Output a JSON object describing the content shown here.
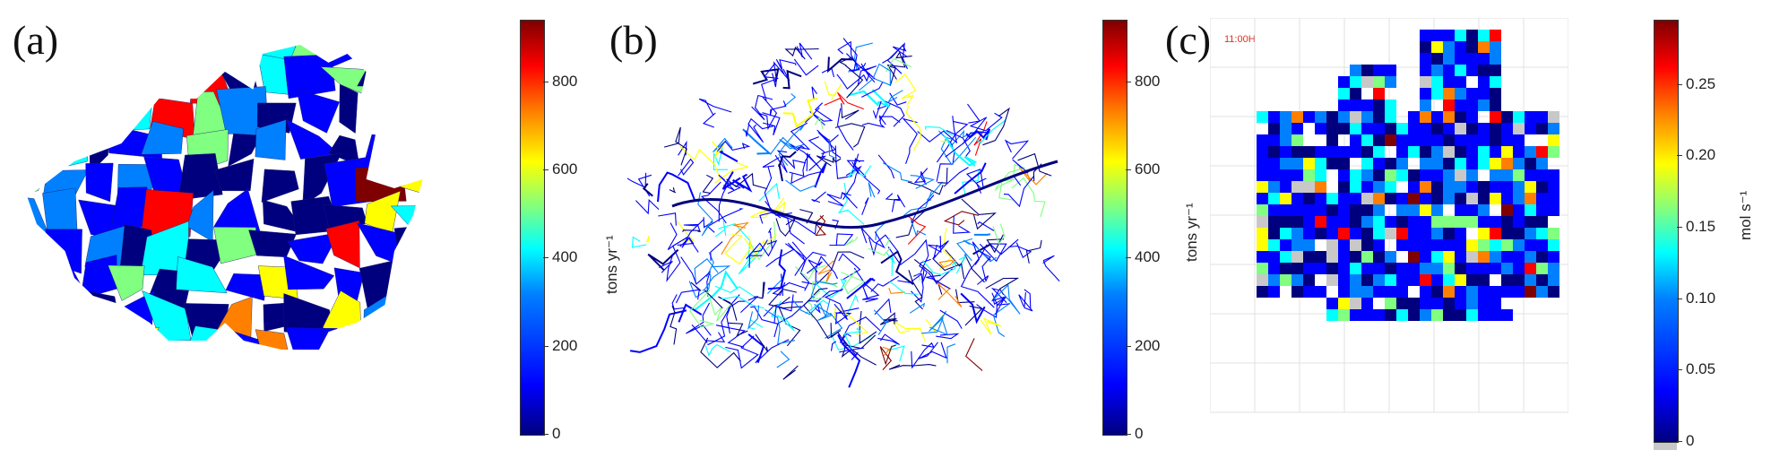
{
  "panels": [
    {
      "label": "(a)",
      "colorbar": {
        "ticks": [
          "800",
          "600",
          "400",
          "200",
          "0"
        ],
        "unit": "tons yr⁻¹"
      }
    },
    {
      "label": "(b)",
      "colorbar": {
        "ticks": [
          "800",
          "600",
          "400",
          "200",
          "0"
        ],
        "unit": "tons yr⁻¹"
      }
    },
    {
      "label": "(c)",
      "timestamp": "11:00H",
      "colorbar": {
        "ticks": [
          "0.25",
          "0.20",
          "0.15",
          "0.10",
          "0.05",
          "0"
        ],
        "unit": "mol s⁻¹"
      }
    }
  ],
  "colors": {
    "scale": [
      "#00007f",
      "#0000ff",
      "#0080ff",
      "#00ffff",
      "#80ff80",
      "#ffff00",
      "#ff8000",
      "#ff0000",
      "#7f0000"
    ],
    "missing": "#c8c8c8"
  }
}
